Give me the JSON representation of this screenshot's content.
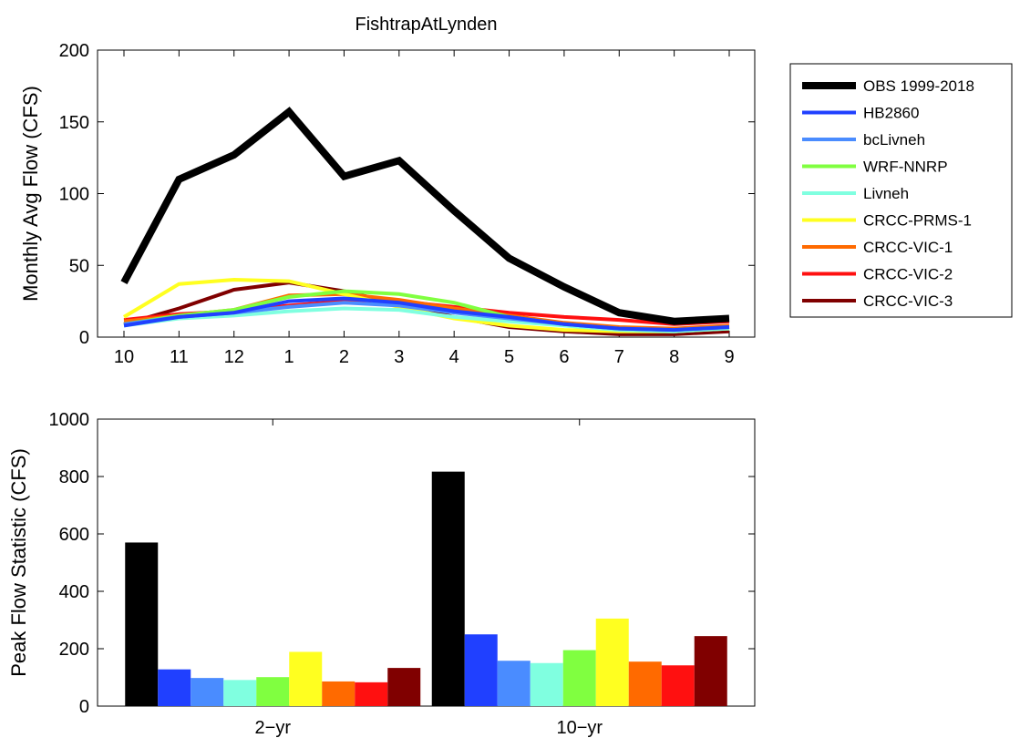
{
  "chart_data": [
    {
      "type": "line",
      "title": "FishtrapAtLynden",
      "xlabel": "",
      "ylabel": "Monthly Avg Flow (CFS)",
      "x": [
        "10",
        "11",
        "12",
        "1",
        "2",
        "3",
        "4",
        "5",
        "6",
        "7",
        "8",
        "9"
      ],
      "ylim": [
        0,
        200
      ],
      "yticks": [
        0,
        50,
        100,
        150,
        200
      ],
      "grid": false,
      "legend": "outside-right",
      "series": [
        {
          "name": "OBS 1999-2018",
          "color": "#000000",
          "values": [
            38,
            110,
            127,
            157,
            112,
            123,
            88,
            55,
            35,
            17,
            11,
            13
          ]
        },
        {
          "name": "HB2860",
          "color": "#2040ff",
          "values": [
            8,
            14,
            17,
            25,
            27,
            24,
            18,
            14,
            9,
            6,
            5,
            7
          ]
        },
        {
          "name": "bcLivneh",
          "color": "#4a8cff",
          "values": [
            9,
            14,
            17,
            21,
            24,
            22,
            17,
            13,
            9,
            6,
            5,
            7
          ]
        },
        {
          "name": "WRF-NNRP",
          "color": "#80ff40",
          "values": [
            9,
            15,
            19,
            28,
            32,
            30,
            24,
            14,
            9,
            6,
            5,
            7
          ]
        },
        {
          "name": "Livneh",
          "color": "#80ffe0",
          "values": [
            8,
            13,
            15,
            18,
            20,
            19,
            14,
            11,
            8,
            5,
            4,
            6
          ]
        },
        {
          "name": "CRCC-PRMS-1",
          "color": "#ffff20",
          "values": [
            14,
            37,
            40,
            39,
            30,
            21,
            13,
            8,
            5,
            4,
            4,
            6
          ]
        },
        {
          "name": "CRCC-VIC-1",
          "color": "#ff6a00",
          "values": [
            11,
            15,
            19,
            29,
            30,
            26,
            20,
            15,
            10,
            7,
            6,
            8
          ]
        },
        {
          "name": "CRCC-VIC-2",
          "color": "#ff1010",
          "values": [
            12,
            16,
            18,
            22,
            25,
            25,
            21,
            17,
            14,
            12,
            9,
            11
          ]
        },
        {
          "name": "CRCC-VIC-3",
          "color": "#800000",
          "values": [
            9,
            20,
            33,
            38,
            32,
            23,
            14,
            7,
            4,
            2,
            2,
            4
          ]
        }
      ]
    },
    {
      "type": "bar",
      "title": "",
      "xlabel": "",
      "ylabel": "Peak Flow Statistic (CFS)",
      "categories": [
        "2−yr",
        "10−yr"
      ],
      "ylim": [
        0,
        1000
      ],
      "yticks": [
        0,
        200,
        400,
        600,
        800,
        1000
      ],
      "grid": false,
      "series": [
        {
          "name": "OBS 1999-2018",
          "color": "#000000",
          "values": [
            570,
            817
          ]
        },
        {
          "name": "HB2860",
          "color": "#2040ff",
          "values": [
            128,
            250
          ]
        },
        {
          "name": "bcLivneh",
          "color": "#4a8cff",
          "values": [
            98,
            158
          ]
        },
        {
          "name": "Livneh",
          "color": "#80ffe0",
          "values": [
            91,
            150
          ]
        },
        {
          "name": "WRF-NNRP",
          "color": "#80ff40",
          "values": [
            101,
            195
          ]
        },
        {
          "name": "CRCC-PRMS-1",
          "color": "#ffff20",
          "values": [
            189,
            305
          ]
        },
        {
          "name": "CRCC-VIC-1",
          "color": "#ff6a00",
          "values": [
            86,
            155
          ]
        },
        {
          "name": "CRCC-VIC-2",
          "color": "#ff1010",
          "values": [
            83,
            142
          ]
        },
        {
          "name": "CRCC-VIC-3",
          "color": "#800000",
          "values": [
            133,
            244
          ]
        }
      ]
    }
  ]
}
